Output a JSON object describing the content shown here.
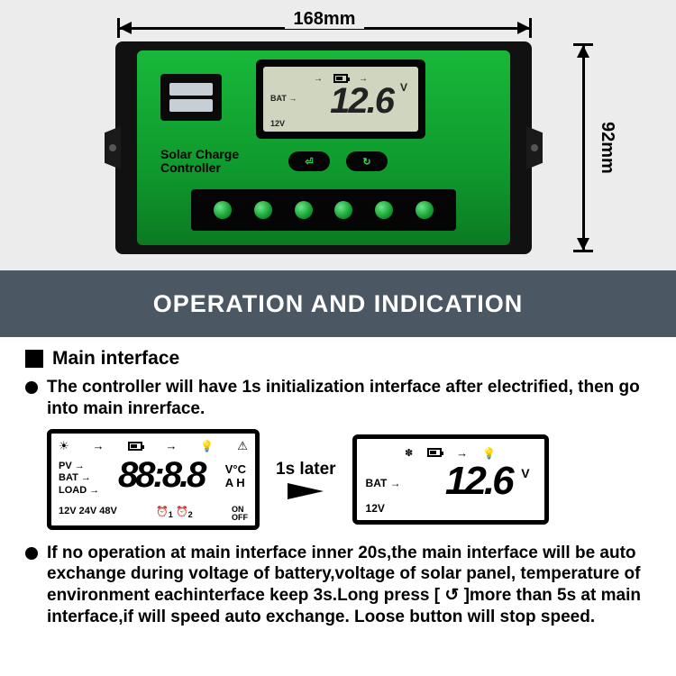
{
  "dimensions": {
    "width_label": "168mm",
    "height_label": "92mm"
  },
  "device": {
    "product_name_line1": "Solar Charge",
    "product_name_line2": "Controller",
    "lcd": {
      "bat_label": "BAT",
      "reading": "12.6",
      "unit": "V",
      "v12": "12V"
    },
    "button1_glyph": "⏎",
    "button2_glyph": "↻",
    "terminal_count": 6,
    "colors": {
      "body": "#111111",
      "face_top": "#18b83a",
      "face_bottom": "#0c7a23",
      "lcd_bg": "#cfd5bf"
    }
  },
  "header": "OPERATION AND INDICATION",
  "section_title": "Main interface",
  "bullet1": "The controller will have 1s initialization interface after electrified, then go into main inrerface.",
  "between_label": "1s later",
  "init_lcd": {
    "pv": "PV",
    "bat": "BAT",
    "load": "LOAD",
    "digits": "88:8.8",
    "unit1": "V°C",
    "unit2": "A H",
    "bottom_left": "12V 24V 48V",
    "clock1": "1",
    "clock2": "2",
    "onoff": "ON\nOFF"
  },
  "main_lcd": {
    "bat": "BAT",
    "digits": "12.6",
    "unit": "V",
    "v12": "12V"
  },
  "bullet2": "If no operation at main interface inner 20s,the main interface will be auto exchange during voltage of battery,voltage of solar panel, temperature of environment eachinterface keep 3s.Long press [ ↺ ]more than 5s at main interface,if will speed auto exchange. Loose button will stop speed.",
  "colors": {
    "header_bg": "#4b5864",
    "page_bg": "#ffffff",
    "top_bg": "#ececec"
  }
}
